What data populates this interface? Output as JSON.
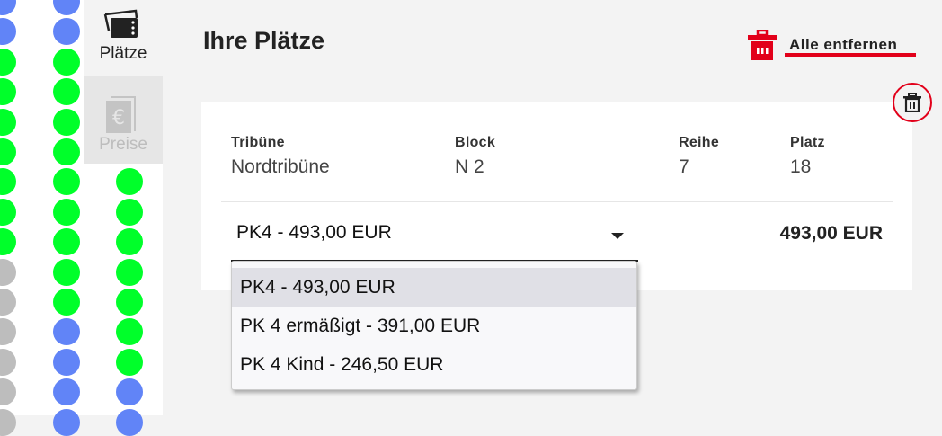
{
  "seatmap": {
    "colors": {
      "available": "#00ff2a",
      "taken": "#bdbdbd",
      "selected": "#6184f7"
    },
    "columns": [
      [
        "selected",
        "selected",
        "available",
        "available",
        "available",
        "available",
        "available",
        "available",
        "available",
        "taken",
        "taken",
        "taken",
        "taken",
        "taken",
        "taken"
      ],
      [
        "selected",
        "selected",
        "available",
        "available",
        "available",
        "available",
        "available",
        "available",
        "available",
        "available",
        "available",
        "selected",
        "selected",
        "selected",
        "selected"
      ],
      [
        null,
        null,
        null,
        null,
        null,
        null,
        "available",
        "available",
        "available",
        "available",
        "available",
        "available",
        "available",
        "selected",
        "selected"
      ]
    ]
  },
  "sidebar": {
    "tabs": [
      {
        "label": "Plätze",
        "icon": "tickets-icon"
      },
      {
        "label": "Preise",
        "icon": "euro-icon"
      }
    ]
  },
  "header": {
    "title": "Ihre Plätze",
    "remove_all": "Alle entfernen"
  },
  "accent": "#e2001a",
  "seat": {
    "columns": [
      {
        "header": "Tribüne",
        "value": "Nordtribüne"
      },
      {
        "header": "Block",
        "value": "N 2"
      },
      {
        "header": "Reihe",
        "value": "7"
      },
      {
        "header": "Platz",
        "value": "18"
      }
    ],
    "selected_price": "PK4 - 493,00 EUR",
    "price": "493,00 EUR",
    "options": [
      "PK4 - 493,00 EUR",
      "PK 4 ermäßigt - 391,00 EUR",
      "PK 4 Kind - 246,50 EUR"
    ]
  }
}
